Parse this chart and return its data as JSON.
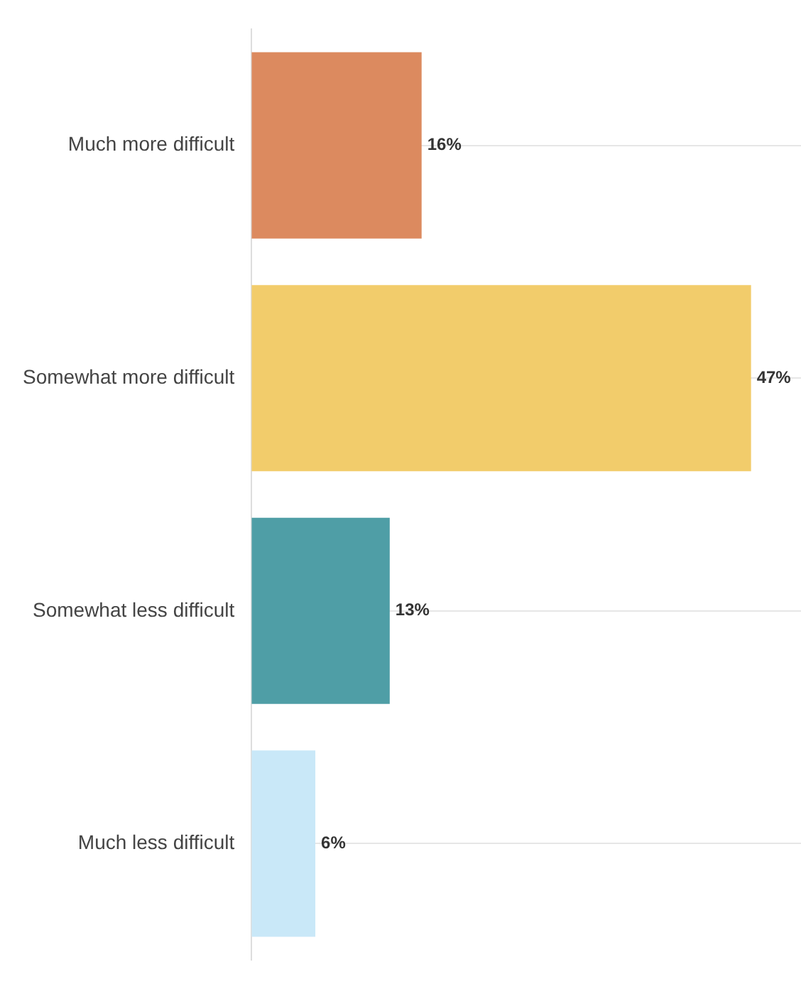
{
  "chart_data": {
    "type": "bar",
    "orientation": "horizontal",
    "categories": [
      "Much more difficult",
      "Somewhat more difficult",
      "Somewhat less difficult",
      "Much less difficult"
    ],
    "values": [
      16,
      47,
      13,
      6
    ],
    "colors": [
      "#dc8a5f",
      "#f2cc6b",
      "#4f9ea6",
      "#c9e8f8"
    ],
    "value_labels": [
      "16%",
      "47%",
      "13%",
      "6%"
    ],
    "grid": "y",
    "tick_labels": "y"
  }
}
